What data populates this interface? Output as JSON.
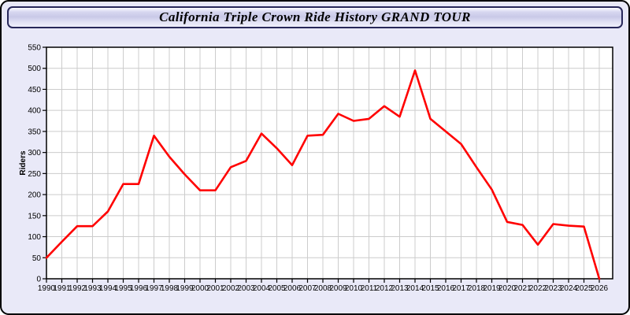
{
  "window": {
    "title": "California Triple Crown Ride History GRAND TOUR"
  },
  "colors": {
    "page_background": "#e9e9f8",
    "frame_border": "#000000",
    "titlebar_border": "#28285a",
    "plot_background": "#ffffff",
    "grid": "#cccccc",
    "axis": "#000000",
    "line": "#ff0000"
  },
  "chart_data": {
    "type": "line",
    "title": "California Triple Crown Ride History GRAND TOUR",
    "xlabel": "",
    "ylabel": "Riders",
    "x": [
      1990,
      1991,
      1992,
      1993,
      1994,
      1995,
      1996,
      1997,
      1998,
      1999,
      2000,
      2001,
      2002,
      2003,
      2004,
      2005,
      2006,
      2007,
      2008,
      2009,
      2010,
      2011,
      2012,
      2013,
      2014,
      2015,
      2016,
      2017,
      2018,
      2019,
      2020,
      2021,
      2022,
      2023,
      2024,
      2025,
      2026
    ],
    "series": [
      {
        "name": "Riders",
        "color": "#ff0000",
        "values": [
          50,
          88,
          125,
          125,
          160,
          225,
          225,
          340,
          290,
          248,
          210,
          210,
          265,
          280,
          345,
          310,
          270,
          340,
          342,
          392,
          375,
          380,
          410,
          385,
          495,
          380,
          350,
          320,
          265,
          212,
          135,
          128,
          81,
          130,
          126,
          124,
          0
        ]
      }
    ],
    "ylim": [
      0,
      550
    ],
    "yticks": [
      0,
      50,
      100,
      150,
      200,
      250,
      300,
      350,
      400,
      450,
      500,
      550
    ],
    "grid": true,
    "legend_position": "none"
  }
}
